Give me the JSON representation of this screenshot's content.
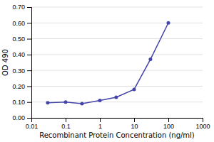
{
  "chart_data": {
    "type": "line",
    "x": [
      0.03,
      0.1,
      0.3,
      1,
      3,
      10,
      30,
      100
    ],
    "values": [
      0.095,
      0.1,
      0.09,
      0.11,
      0.13,
      0.18,
      0.37,
      0.6
    ],
    "color": "#4444aa",
    "marker": "circle",
    "xlabel": "Recombinant Protein Concentration (ng/ml)",
    "ylabel": "OD 490",
    "log": "x",
    "xlim": [
      0.01,
      1000
    ],
    "ylim": [
      0,
      0.7
    ],
    "xticks": [
      0.01,
      0.1,
      1,
      10,
      100,
      1000
    ],
    "yticks": [
      {
        "value": 0,
        "label": "0.00"
      },
      {
        "value": 0.1,
        "label": "0.10"
      },
      {
        "value": 0.2,
        "label": "0.20"
      },
      {
        "value": 0.3,
        "label": "0.30"
      },
      {
        "value": 0.4,
        "label": "0.40"
      },
      {
        "value": 0.5,
        "label": "0.50"
      },
      {
        "value": 0.6,
        "label": "0.60"
      },
      {
        "value": 0.7,
        "label": "0.70"
      }
    ],
    "grid": true
  }
}
